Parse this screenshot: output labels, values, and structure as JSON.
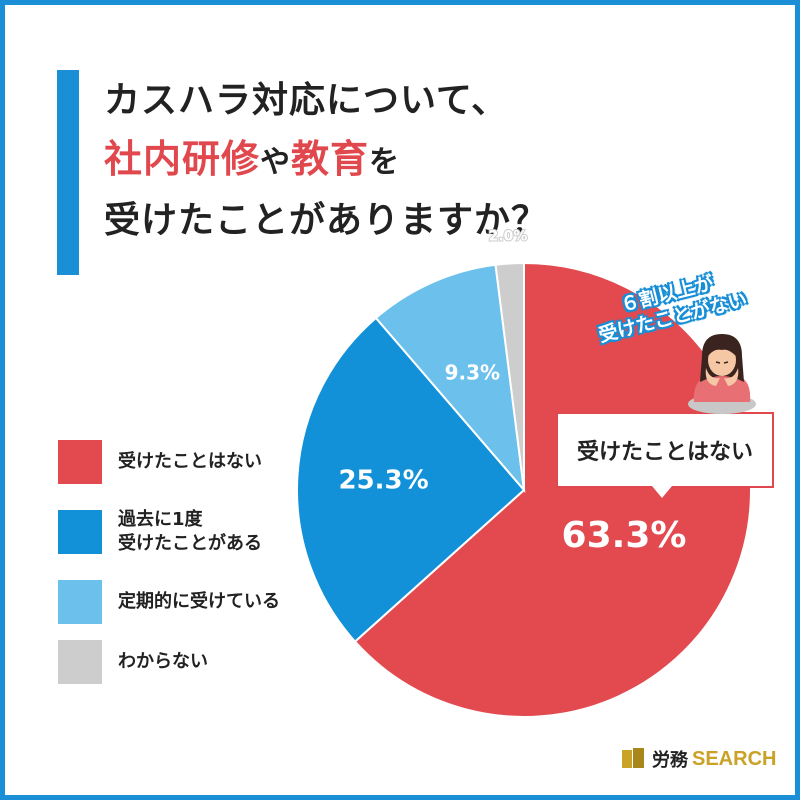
{
  "title": {
    "line1": "カスハラ対応について、",
    "line2_a": "社内研修",
    "line2_b": "や",
    "line2_c": "教育",
    "line2_d": "を",
    "line3": "受けたことがありますか？"
  },
  "chart_data": {
    "type": "pie",
    "title": "カスハラ対応について、社内研修や教育を受けたことがありますか？",
    "categories": [
      "受けたことはない",
      "過去に1度\n受けたことがある",
      "定期的に受けている",
      "わからない"
    ],
    "values": [
      63.3,
      25.3,
      9.3,
      2.0
    ],
    "labels": [
      "63.3%",
      "25.3%",
      "9.3%",
      "2.0%"
    ],
    "colors": [
      "#e24a4f",
      "#1291d8",
      "#6cc1ec",
      "#cdcdcd"
    ],
    "start_angle_deg": 0,
    "direction": "clockwise",
    "legend_position": "left"
  },
  "callout": {
    "text": "受けたことはない"
  },
  "note": {
    "line1": "６割以上が",
    "line2": "受けたことがない"
  },
  "logo": {
    "jp": "労務",
    "en": "SEARCH"
  },
  "icons": {
    "figure": "worried-woman-illustration",
    "logo": "book-icon"
  }
}
